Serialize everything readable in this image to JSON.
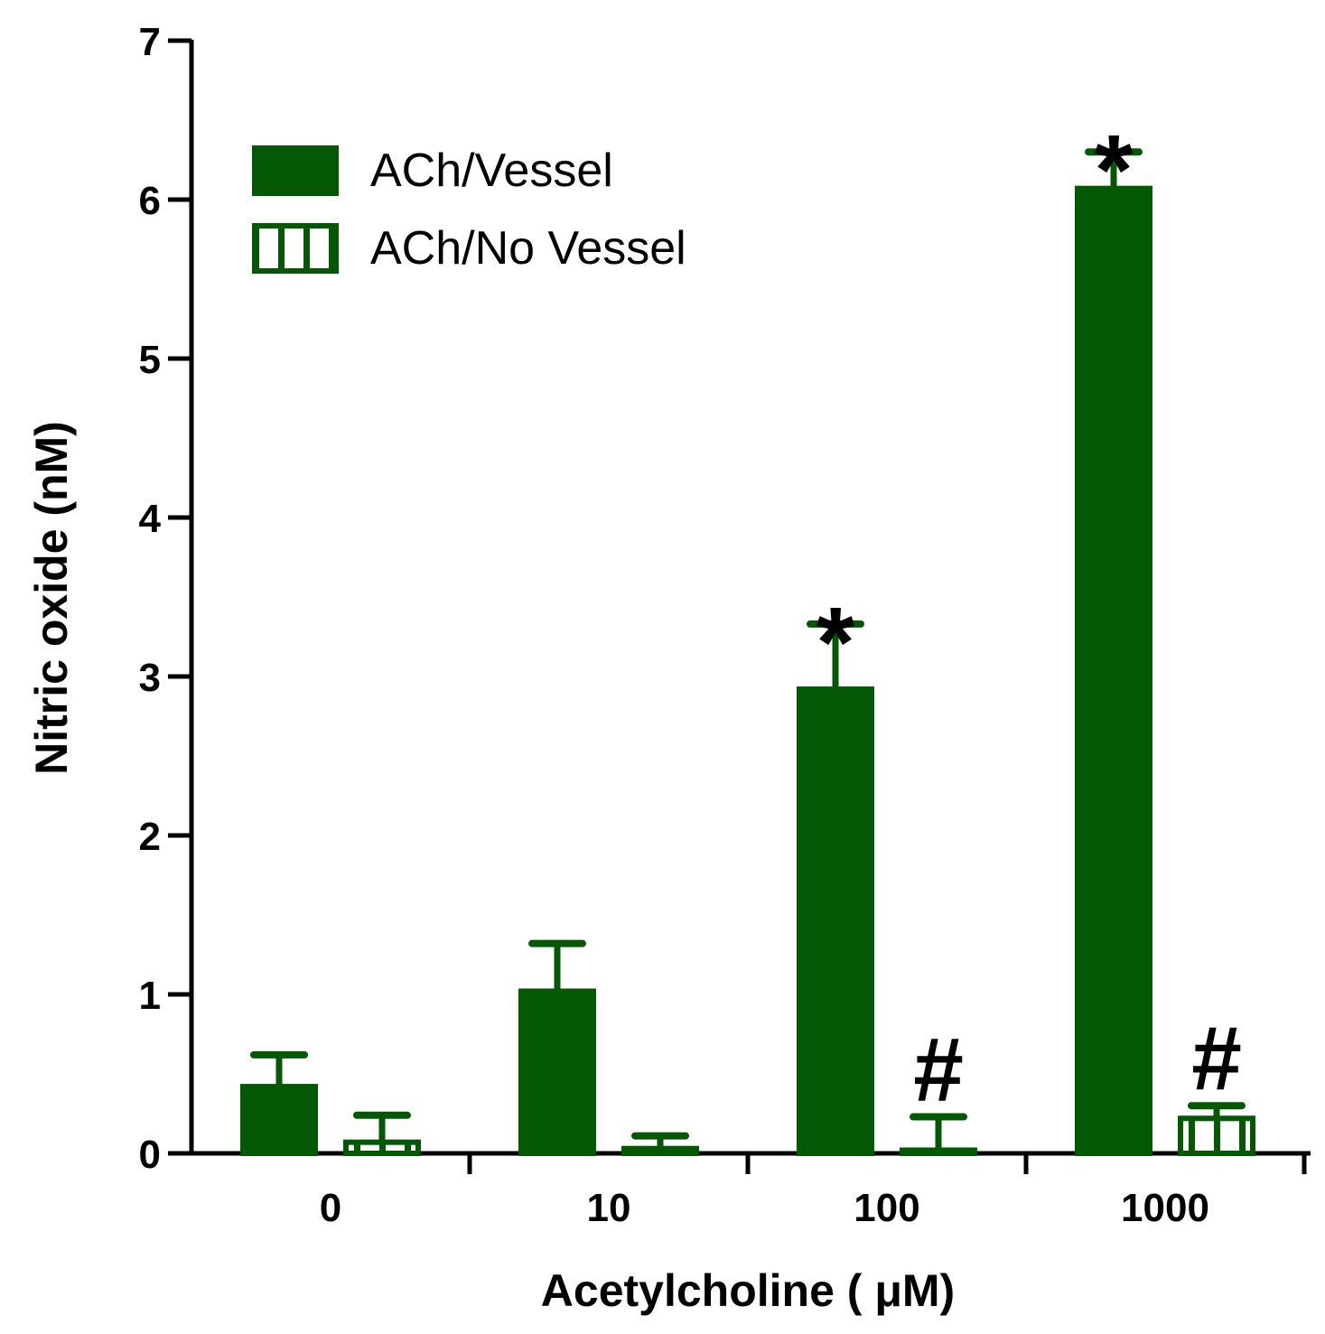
{
  "chart_data": {
    "type": "bar",
    "xlabel": "Acetylcholine ( μM)",
    "ylabel": "Nitric oxide (nM)",
    "categories": [
      "0",
      "10",
      "100",
      "1000"
    ],
    "ylim": [
      0,
      7
    ],
    "yticks": [
      "0",
      "1",
      "2",
      "3",
      "4",
      "5",
      "6",
      "7"
    ],
    "grid": false,
    "legend_position": "top-left",
    "series": [
      {
        "name": "ACh/Vessel",
        "fill": "solid",
        "color": "#045804",
        "values": [
          0.42,
          1.02,
          2.92,
          6.07
        ],
        "errors": [
          0.2,
          0.3,
          0.41,
          0.23
        ],
        "annotations": [
          "",
          "",
          "*",
          "*"
        ]
      },
      {
        "name": "ACh/No Vessel",
        "fill": "striped",
        "color": "#045804",
        "values": [
          0.07,
          0.03,
          0.02,
          0.22
        ],
        "errors": [
          0.17,
          0.08,
          0.21,
          0.08
        ],
        "annotations": [
          "",
          "",
          "#",
          "#"
        ]
      }
    ]
  }
}
